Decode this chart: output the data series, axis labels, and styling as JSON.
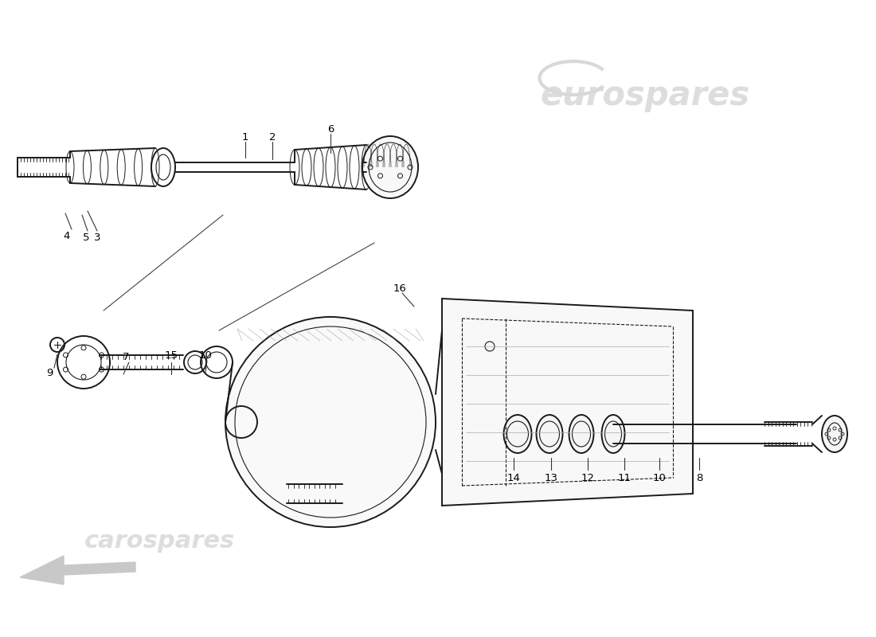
{
  "background_color": "#ffffff",
  "line_color": "#1a1a1a",
  "watermark_eurospares": "eurospares",
  "watermark_carospares": "carospares",
  "part_labels": [
    "1",
    "2",
    "3",
    "4",
    "5",
    "6",
    "7",
    "8",
    "9",
    "10",
    "11",
    "12",
    "13",
    "14",
    "15",
    "16"
  ]
}
